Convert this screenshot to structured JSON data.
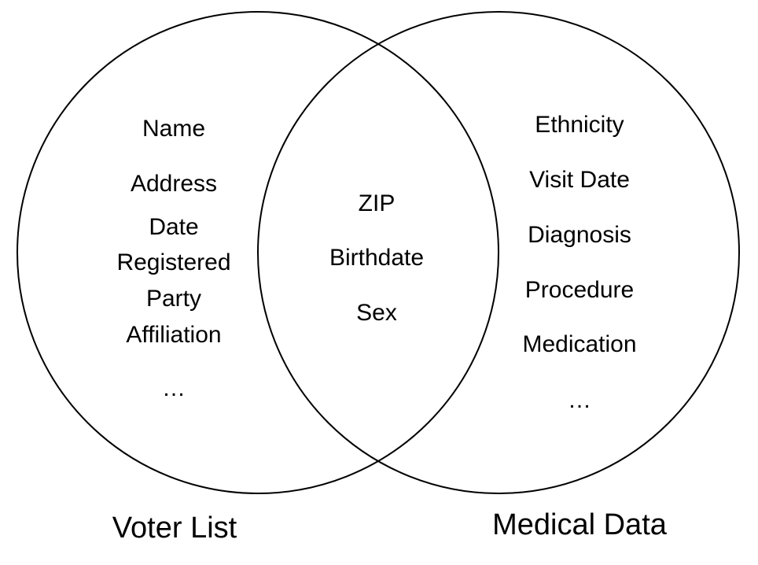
{
  "sets": {
    "left": {
      "label": "Voter List",
      "items": [
        "Name",
        "Address",
        "Date",
        "Registered",
        "Party",
        "Affiliation",
        "…"
      ]
    },
    "right": {
      "label": "Medical Data",
      "items": [
        "Ethnicity",
        "Visit Date",
        "Diagnosis",
        "Procedure",
        "Medication",
        "…"
      ]
    },
    "overlap": {
      "items": [
        "ZIP",
        "Birthdate",
        "Sex"
      ]
    }
  }
}
